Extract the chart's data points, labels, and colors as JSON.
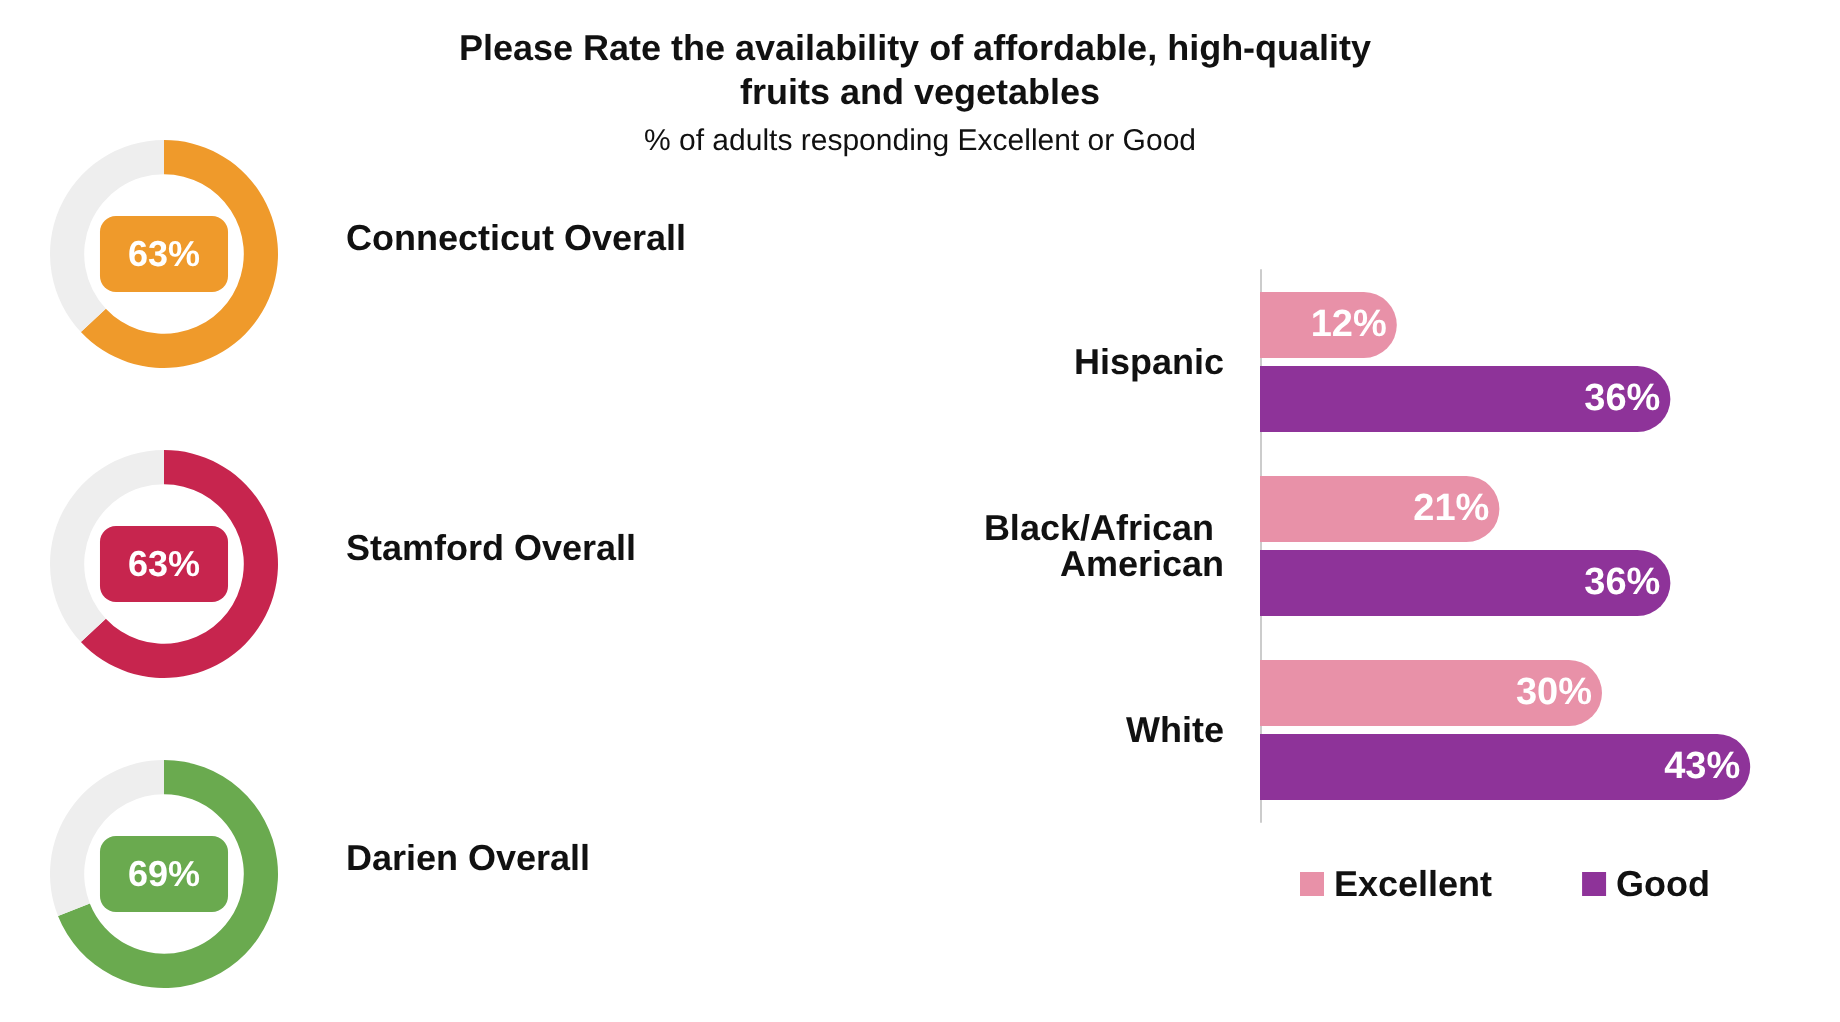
{
  "chart_data": [
    {
      "type": "donut",
      "title": "Connecticut Overall",
      "categories": [
        null,
        null
      ],
      "values": [
        63,
        37
      ],
      "colors": [
        "#ef9a2b",
        "#eeeeee"
      ],
      "value_labels": [
        "63%",
        null
      ]
    },
    {
      "type": "donut",
      "title": "Stamford Overall",
      "categories": [
        null,
        null
      ],
      "values": [
        63,
        37
      ],
      "colors": [
        "#c7254e",
        "#eeeeee"
      ],
      "value_labels": [
        "63%",
        null
      ]
    },
    {
      "type": "donut",
      "title": "Darien Overall",
      "categories": [
        null,
        null
      ],
      "values": [
        69,
        31
      ],
      "colors": [
        "#6aaa4f",
        "#eeeeee"
      ],
      "value_labels": [
        "69%",
        null
      ]
    },
    {
      "type": "bar",
      "orientation": "horizontal",
      "title": "Please Rate the availability of affordable, high-quality fruits and vegetables",
      "subtitle": "% of adults responding Excellent or Good",
      "categories": [
        "Hispanic",
        "Black/African American",
        "White"
      ],
      "series": [
        {
          "name": "Excellent",
          "color": "#e891a8",
          "values": [
            12,
            21,
            30
          ],
          "value_labels": [
            "12%",
            "21%",
            "30%"
          ]
        },
        {
          "name": "Good",
          "color": "#8e3399",
          "values": [
            36,
            36,
            43
          ],
          "value_labels": [
            "36%",
            "36%",
            "43%"
          ]
        }
      ],
      "legend": "bottom"
    }
  ]
}
